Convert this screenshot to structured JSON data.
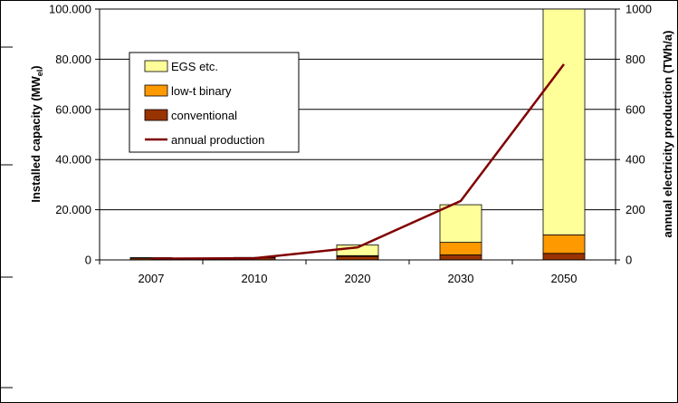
{
  "chart_data": {
    "type": "bar",
    "stacked": true,
    "categories": [
      "2007",
      "2010",
      "2020",
      "2030",
      "2050"
    ],
    "series": [
      {
        "name": "conventional",
        "axis": "left",
        "color": "#993300",
        "values": [
          800,
          900,
          1400,
          2000,
          2600
        ]
      },
      {
        "name": "low-t binary",
        "axis": "left",
        "color": "#ff9900",
        "values": [
          100,
          100,
          300,
          5000,
          7400
        ]
      },
      {
        "name": "EGS etc.",
        "axis": "left",
        "color": "#ffff99",
        "values": [
          0,
          0,
          4300,
          15000,
          90000
        ]
      },
      {
        "name": "annual production",
        "type": "line",
        "axis": "right",
        "color": "#800000",
        "values": [
          5,
          7,
          50,
          235,
          780
        ]
      }
    ],
    "legend_order": [
      "EGS etc.",
      "low-t binary",
      "conventional",
      "annual production"
    ],
    "y_left": {
      "label_main": "Installed capacity (MW",
      "label_sub": "el",
      "label_end": ")",
      "ylim": [
        0,
        100000
      ],
      "ticks": [
        "0",
        "20.000",
        "40.000",
        "60.000",
        "80.000",
        "100.000"
      ]
    },
    "y_right": {
      "label": "annual electricity production (TWh/a)",
      "ylim": [
        0,
        1000
      ],
      "ticks": [
        "0",
        "200",
        "400",
        "600",
        "800",
        "1000"
      ]
    },
    "grid": true,
    "legend_position": "top-left"
  }
}
